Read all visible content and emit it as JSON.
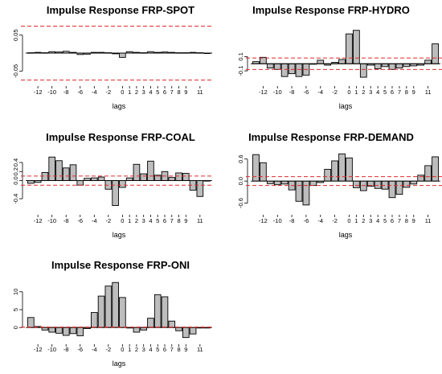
{
  "chart_data": [
    {
      "type": "bar",
      "title": "Impulse Response FRP-SPOT",
      "xlabel": "lags",
      "x": [
        -13,
        -12,
        -11,
        -10,
        -9,
        -8,
        -7,
        -6,
        -5,
        -4,
        -3,
        -2,
        -1,
        0,
        1,
        2,
        3,
        4,
        5,
        6,
        7,
        8,
        9,
        10,
        11,
        12
      ],
      "values": [
        0.001,
        0.002,
        0.001,
        0.004,
        0.003,
        0.005,
        0.002,
        -0.004,
        -0.003,
        0.002,
        0.002,
        0.001,
        -0.002,
        -0.012,
        0.004,
        0.002,
        0.001,
        0.004,
        0.002,
        0.003,
        0.002,
        0.001,
        0.001,
        0.002,
        0.001,
        0.0
      ],
      "bands": [
        0.075,
        -0.075
      ],
      "ylim": [
        -0.085,
        0.085
      ],
      "yticks": [
        -0.05,
        0.05
      ],
      "ytick_labels": [
        "-0.05",
        "0.05"
      ],
      "xticks": [
        -12,
        -10,
        -8,
        -6,
        -4,
        -2,
        0,
        1,
        2,
        3,
        4,
        5,
        6,
        7,
        8,
        9,
        11
      ],
      "xtick_labels": [
        "-12",
        "-10",
        "-8",
        "-6",
        "-4",
        "-2",
        "0",
        "1",
        "2",
        "3",
        "4",
        "5",
        "6",
        "7",
        "8",
        "9",
        "11"
      ]
    },
    {
      "type": "bar",
      "title": "Impulse Response FRP-HYDRO",
      "xlabel": "lags",
      "x": [
        -13,
        -12,
        -11,
        -10,
        -9,
        -8,
        -7,
        -6,
        -5,
        -4,
        -3,
        -2,
        -1,
        0,
        1,
        2,
        3,
        4,
        5,
        6,
        7,
        8,
        9,
        10,
        11,
        12
      ],
      "values": [
        0.03,
        0.09,
        -0.06,
        -0.08,
        -0.18,
        -0.14,
        -0.18,
        -0.16,
        0.0,
        0.05,
        -0.02,
        0.02,
        0.06,
        0.42,
        0.47,
        -0.19,
        -0.02,
        -0.07,
        -0.04,
        -0.08,
        -0.06,
        -0.04,
        -0.03,
        -0.02,
        0.05,
        0.28
      ],
      "bands": [
        0.08,
        -0.08
      ],
      "ylim": [
        -0.28,
        0.58
      ],
      "yticks": [
        -0.1,
        0.1
      ],
      "ytick_labels": [
        "-0.1",
        "0.1"
      ],
      "xticks": [
        -12,
        -10,
        -8,
        -6,
        -4,
        -2,
        0,
        1,
        2,
        3,
        4,
        5,
        6,
        7,
        8,
        9,
        11
      ],
      "xtick_labels": [
        "-12",
        "-10",
        "-8",
        "-6",
        "-4",
        "-2",
        "0",
        "1",
        "2",
        "3",
        "4",
        "5",
        "6",
        "7",
        "8",
        "9",
        "11"
      ]
    },
    {
      "type": "bar",
      "title": "Impulse Response FRP-COAL",
      "xlabel": "lags",
      "x": [
        -13,
        -12,
        -11,
        -10,
        -9,
        -8,
        -7,
        -6,
        -5,
        -4,
        -3,
        -2,
        -1,
        0,
        1,
        2,
        3,
        4,
        5,
        6,
        7,
        8,
        9,
        10,
        11,
        12
      ],
      "values": [
        -0.06,
        -0.04,
        0.18,
        0.52,
        0.44,
        0.28,
        0.35,
        -0.1,
        0.05,
        0.06,
        0.08,
        -0.19,
        -0.55,
        -0.15,
        0.06,
        0.36,
        0.15,
        0.43,
        0.12,
        0.2,
        0.07,
        0.17,
        0.16,
        -0.21,
        -0.35,
        0.0
      ],
      "bands": [
        0.1,
        -0.1
      ],
      "ylim": [
        -0.7,
        0.72
      ],
      "yticks": [
        -0.4,
        0.0,
        0.2,
        0.4
      ],
      "ytick_labels": [
        "-0.4",
        "0.0",
        "0.2",
        "0.4"
      ],
      "xticks": [
        -12,
        -10,
        -8,
        -6,
        -4,
        -2,
        0,
        1,
        2,
        3,
        4,
        5,
        6,
        7,
        8,
        9,
        11
      ],
      "xtick_labels": [
        "-12",
        "-10",
        "-8",
        "-6",
        "-4",
        "-2",
        "0",
        "1",
        "2",
        "3",
        "4",
        "5",
        "6",
        "7",
        "8",
        "9",
        "11"
      ]
    },
    {
      "type": "bar",
      "title": "Impulse Response FRP-DEMAND",
      "xlabel": "lags",
      "x": [
        -13,
        -12,
        -11,
        -10,
        -9,
        -8,
        -7,
        -6,
        -5,
        -4,
        -3,
        -2,
        -1,
        0,
        1,
        2,
        3,
        4,
        5,
        6,
        7,
        8,
        9,
        10,
        11,
        12
      ],
      "values": [
        0.72,
        0.5,
        -0.07,
        -0.1,
        -0.08,
        -0.24,
        -0.55,
        -0.65,
        -0.12,
        -0.04,
        0.32,
        0.55,
        0.74,
        0.63,
        -0.18,
        -0.26,
        -0.14,
        -0.2,
        -0.22,
        -0.45,
        -0.36,
        -0.17,
        -0.08,
        0.16,
        0.42,
        0.66
      ],
      "bands": [
        0.12,
        -0.12
      ],
      "ylim": [
        -0.85,
        0.9
      ],
      "yticks": [
        -0.6,
        0.0,
        0.6
      ],
      "ytick_labels": [
        "-0.6",
        "0.0",
        "0.6"
      ],
      "xticks": [
        -12,
        -10,
        -8,
        -6,
        -4,
        -2,
        0,
        1,
        2,
        3,
        4,
        5,
        6,
        7,
        8,
        9,
        11
      ],
      "xtick_labels": [
        "-12",
        "-10",
        "-8",
        "-6",
        "-4",
        "-2",
        "0",
        "1",
        "2",
        "3",
        "4",
        "5",
        "6",
        "7",
        "8",
        "9",
        "11"
      ]
    },
    {
      "type": "bar",
      "title": "Impulse Response FRP-ONI",
      "xlabel": "lags",
      "x": [
        -13,
        -12,
        -11,
        -10,
        -9,
        -8,
        -7,
        -6,
        -5,
        -4,
        -3,
        -2,
        -1,
        0,
        1,
        2,
        3,
        4,
        5,
        6,
        7,
        8,
        9,
        10,
        11,
        12
      ],
      "values": [
        2.8,
        0.3,
        -0.7,
        -1.3,
        -1.6,
        -2.2,
        -1.7,
        -2.3,
        -0.3,
        4.2,
        8.8,
        11.6,
        12.6,
        8.4,
        -0.1,
        -1.3,
        -0.7,
        2.6,
        9.2,
        8.6,
        1.8,
        -0.9,
        -2.8,
        -1.8,
        0.0,
        0.0
      ],
      "bands": [
        0.1,
        0.1
      ],
      "ylim": [
        -4,
        14
      ],
      "yticks": [
        0,
        5,
        10
      ],
      "ytick_labels": [
        "0",
        "5",
        "10"
      ],
      "xticks": [
        -12,
        -10,
        -8,
        -6,
        -4,
        -2,
        0,
        1,
        2,
        3,
        4,
        5,
        6,
        7,
        8,
        9,
        11
      ],
      "xtick_labels": [
        "-12",
        "-10",
        "-8",
        "-6",
        "-4",
        "-2",
        "0",
        "1",
        "2",
        "3",
        "4",
        "5",
        "6",
        "7",
        "8",
        "9",
        "11"
      ]
    }
  ]
}
